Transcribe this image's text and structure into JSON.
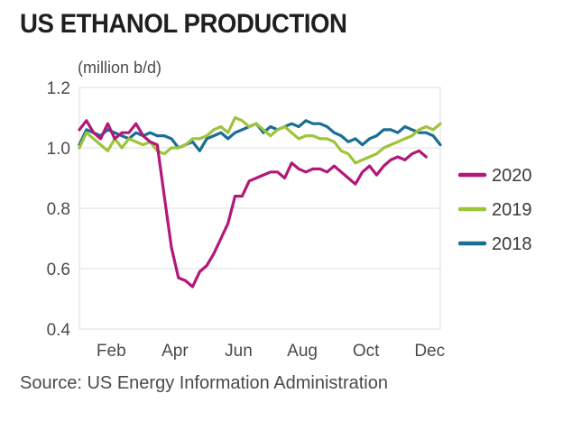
{
  "title": "US ETHANOL PRODUCTION",
  "source": "Source: US Energy Information Administration",
  "chart_data": {
    "type": "line",
    "title": "US ETHANOL PRODUCTION",
    "ylabel": "(million b/d)",
    "xlabel": "",
    "ylim": [
      0.4,
      1.2
    ],
    "yticks": [
      "0.4",
      "0.6",
      "0.8",
      "1.0",
      "1.2"
    ],
    "yticks_values": [
      0.4,
      0.6,
      0.8,
      1.0,
      1.2
    ],
    "xlim": [
      1,
      52
    ],
    "xticks": [
      "Feb",
      "Apr",
      "Jun",
      "Aug",
      "Oct",
      "Dec"
    ],
    "xticks_values": [
      5.5,
      14.5,
      23.5,
      32.5,
      41.5,
      50.5
    ],
    "grid": "horizontal",
    "legend_position": "right",
    "x_unit": "week",
    "series": [
      {
        "name": "2020",
        "color": "#b3177a",
        "x": [
          1,
          2,
          3,
          4,
          5,
          6,
          7,
          8,
          9,
          10,
          11,
          12,
          13,
          14,
          15,
          16,
          17,
          18,
          19,
          20,
          21,
          22,
          23,
          24,
          25,
          26,
          27,
          28,
          29,
          30,
          31,
          32,
          33,
          34,
          35,
          36,
          37,
          38,
          39,
          40,
          41,
          42,
          43,
          44,
          45,
          46,
          47,
          48,
          49,
          50
        ],
        "values": [
          1.06,
          1.09,
          1.05,
          1.03,
          1.08,
          1.03,
          1.05,
          1.05,
          1.08,
          1.04,
          1.02,
          1.01,
          0.84,
          0.67,
          0.57,
          0.56,
          0.54,
          0.59,
          0.61,
          0.65,
          0.7,
          0.75,
          0.84,
          0.84,
          0.89,
          0.9,
          0.91,
          0.92,
          0.92,
          0.9,
          0.95,
          0.93,
          0.92,
          0.93,
          0.93,
          0.92,
          0.94,
          0.92,
          0.9,
          0.88,
          0.92,
          0.94,
          0.91,
          0.94,
          0.96,
          0.97,
          0.96,
          0.98,
          0.99,
          0.97
        ]
      },
      {
        "name": "2019",
        "color": "#9ec43a",
        "x": [
          1,
          2,
          3,
          4,
          5,
          6,
          7,
          8,
          9,
          10,
          11,
          12,
          13,
          14,
          15,
          16,
          17,
          18,
          19,
          20,
          21,
          22,
          23,
          24,
          25,
          26,
          27,
          28,
          29,
          30,
          31,
          32,
          33,
          34,
          35,
          36,
          37,
          38,
          39,
          40,
          41,
          42,
          43,
          44,
          45,
          46,
          47,
          48,
          49,
          50,
          51,
          52
        ],
        "values": [
          1.0,
          1.05,
          1.03,
          1.01,
          0.99,
          1.03,
          1.0,
          1.03,
          1.02,
          1.01,
          1.02,
          0.99,
          0.98,
          1.0,
          1.0,
          1.01,
          1.03,
          1.03,
          1.04,
          1.06,
          1.07,
          1.05,
          1.1,
          1.09,
          1.07,
          1.08,
          1.06,
          1.04,
          1.06,
          1.07,
          1.05,
          1.03,
          1.04,
          1.04,
          1.03,
          1.03,
          1.02,
          0.99,
          0.98,
          0.95,
          0.96,
          0.97,
          0.98,
          1.0,
          1.01,
          1.02,
          1.03,
          1.04,
          1.06,
          1.07,
          1.06,
          1.08
        ]
      },
      {
        "name": "2018",
        "color": "#1a6e94",
        "x": [
          1,
          2,
          3,
          4,
          5,
          6,
          7,
          8,
          9,
          10,
          11,
          12,
          13,
          14,
          15,
          16,
          17,
          18,
          19,
          20,
          21,
          22,
          23,
          24,
          25,
          26,
          27,
          28,
          29,
          30,
          31,
          32,
          33,
          34,
          35,
          36,
          37,
          38,
          39,
          40,
          41,
          42,
          43,
          44,
          45,
          46,
          47,
          48,
          49,
          50,
          51,
          52
        ],
        "values": [
          1.01,
          1.06,
          1.05,
          1.04,
          1.06,
          1.05,
          1.04,
          1.03,
          1.05,
          1.04,
          1.05,
          1.04,
          1.04,
          1.03,
          1.0,
          1.01,
          1.02,
          0.99,
          1.03,
          1.04,
          1.05,
          1.03,
          1.05,
          1.06,
          1.07,
          1.08,
          1.05,
          1.07,
          1.06,
          1.07,
          1.08,
          1.07,
          1.09,
          1.08,
          1.08,
          1.07,
          1.05,
          1.04,
          1.02,
          1.03,
          1.01,
          1.03,
          1.04,
          1.06,
          1.06,
          1.05,
          1.07,
          1.06,
          1.05,
          1.05,
          1.04,
          1.01
        ]
      }
    ]
  }
}
